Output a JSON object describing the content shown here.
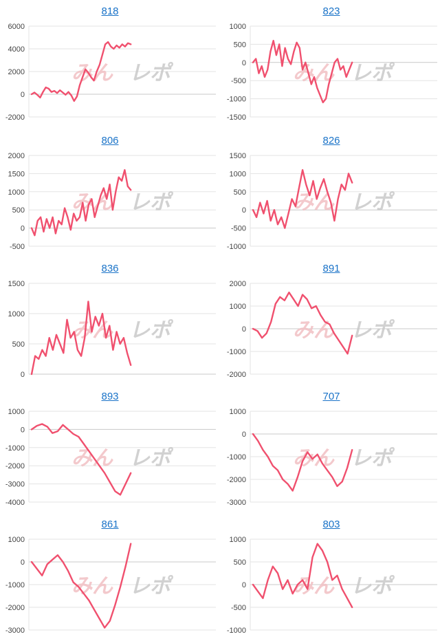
{
  "watermark": {
    "part_a": "みん",
    "part_b": "レポ"
  },
  "colors": {
    "line": "#f0506e",
    "title_link": "#1a73c8",
    "grid": "#e3e3e3"
  },
  "chart_data": [
    {
      "type": "line",
      "title": "818",
      "ylim": [
        -2000,
        6000
      ],
      "yticks": [
        -2000,
        0,
        2000,
        4000,
        6000
      ],
      "values": [
        0,
        150,
        -50,
        -300,
        200,
        600,
        500,
        200,
        300,
        100,
        350,
        150,
        -50,
        200,
        -100,
        -600,
        -200,
        800,
        1500,
        2200,
        1900,
        1500,
        1200,
        2000,
        2600,
        3500,
        4400,
        4600,
        4200,
        4000,
        4300,
        4100,
        4400,
        4200,
        4500,
        4400
      ]
    },
    {
      "type": "line",
      "title": "823",
      "ylim": [
        -1500,
        1000
      ],
      "yticks": [
        -1500,
        -1000,
        -500,
        0,
        500,
        1000
      ],
      "values": [
        0,
        100,
        -300,
        -100,
        -400,
        -200,
        300,
        600,
        200,
        500,
        -100,
        400,
        100,
        -50,
        300,
        550,
        400,
        -200,
        0,
        -300,
        -600,
        -400,
        -700,
        -900,
        -1100,
        -1000,
        -600,
        -300,
        0,
        100,
        -200,
        -100,
        -400,
        -200,
        0
      ]
    },
    {
      "type": "line",
      "title": "806",
      "ylim": [
        -500,
        2000
      ],
      "yticks": [
        -500,
        0,
        500,
        1000,
        1500,
        2000
      ],
      "values": [
        0,
        -200,
        200,
        300,
        -100,
        250,
        0,
        300,
        -150,
        200,
        100,
        550,
        300,
        -50,
        400,
        200,
        300,
        700,
        200,
        650,
        800,
        300,
        600,
        900,
        1100,
        800,
        1200,
        500,
        1000,
        1400,
        1300,
        1600,
        1150,
        1050
      ]
    },
    {
      "type": "line",
      "title": "826",
      "ylim": [
        -1000,
        1500
      ],
      "yticks": [
        -1000,
        -500,
        0,
        500,
        1000,
        1500
      ],
      "values": [
        0,
        -200,
        200,
        -100,
        250,
        -300,
        0,
        -400,
        -200,
        -500,
        -100,
        300,
        100,
        600,
        1100,
        700,
        400,
        800,
        300,
        600,
        850,
        500,
        200,
        -300,
        300,
        700,
        550,
        1000,
        750
      ]
    },
    {
      "type": "line",
      "title": "836",
      "ylim": [
        0,
        1500
      ],
      "yticks": [
        0,
        500,
        1000,
        1500
      ],
      "values": [
        0,
        300,
        250,
        400,
        300,
        600,
        400,
        650,
        500,
        350,
        900,
        600,
        700,
        400,
        300,
        600,
        1200,
        700,
        950,
        800,
        1000,
        600,
        800,
        400,
        700,
        500,
        600,
        350,
        150
      ]
    },
    {
      "type": "line",
      "title": "891",
      "ylim": [
        -2000,
        2000
      ],
      "yticks": [
        -2000,
        -1000,
        0,
        1000,
        2000
      ],
      "values": [
        0,
        -100,
        -400,
        -200,
        300,
        1100,
        1400,
        1250,
        1600,
        1300,
        1000,
        1500,
        1300,
        900,
        1000,
        600,
        300,
        200,
        -200,
        -500,
        -800,
        -1100,
        -300
      ]
    },
    {
      "type": "line",
      "title": "893",
      "ylim": [
        -4000,
        1000
      ],
      "yticks": [
        -4000,
        -3000,
        -2000,
        -1000,
        0,
        1000
      ],
      "values": [
        0,
        200,
        300,
        150,
        -200,
        -100,
        250,
        0,
        -250,
        -400,
        -800,
        -1200,
        -1600,
        -2000,
        -2400,
        -2900,
        -3400,
        -3600,
        -3000,
        -2400
      ]
    },
    {
      "type": "line",
      "title": "707",
      "ylim": [
        -3000,
        1000
      ],
      "yticks": [
        -3000,
        -2000,
        -1000,
        0,
        1000
      ],
      "values": [
        0,
        -300,
        -700,
        -1000,
        -1400,
        -1600,
        -2000,
        -2200,
        -2500,
        -1900,
        -1200,
        -800,
        -1100,
        -900,
        -1300,
        -1600,
        -1900,
        -2300,
        -2100,
        -1500,
        -700
      ]
    },
    {
      "type": "line",
      "title": "861",
      "ylim": [
        -3000,
        1000
      ],
      "yticks": [
        -3000,
        -2000,
        -1000,
        0,
        1000
      ],
      "values": [
        0,
        -300,
        -600,
        -100,
        100,
        300,
        0,
        -400,
        -900,
        -1100,
        -1400,
        -1700,
        -2100,
        -2500,
        -2900,
        -2600,
        -1900,
        -1100,
        -200,
        800
      ]
    },
    {
      "type": "line",
      "title": "803",
      "ylim": [
        -1000,
        1000
      ],
      "yticks": [
        -1000,
        -500,
        0,
        500,
        1000
      ],
      "values": [
        0,
        -150,
        -300,
        100,
        400,
        250,
        -100,
        100,
        -200,
        0,
        100,
        -100,
        600,
        900,
        750,
        500,
        100,
        200,
        -100,
        -300,
        -500
      ]
    }
  ]
}
